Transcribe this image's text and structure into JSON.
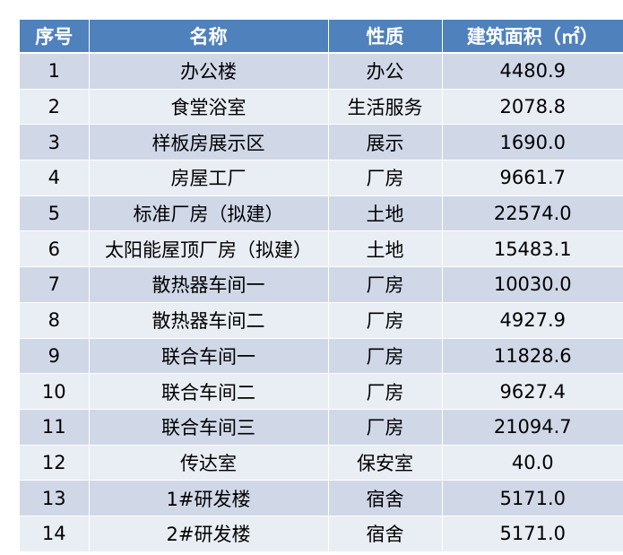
{
  "table": {
    "headers": [
      "序号",
      "名称",
      "性质",
      "建筑面积（㎡）"
    ],
    "rows": [
      [
        "1",
        "办公楼",
        "办公",
        "4480.9"
      ],
      [
        "2",
        "食堂浴室",
        "生活服务",
        "2078.8"
      ],
      [
        "3",
        "样板房展示区",
        "展示",
        "1690.0"
      ],
      [
        "4",
        "房屋工厂",
        "厂房",
        "9661.7"
      ],
      [
        "5",
        "标准厂房（拟建）",
        "土地",
        "22574.0"
      ],
      [
        "6",
        "太阳能屋顶厂房（拟建）",
        "土地",
        "15483.1"
      ],
      [
        "7",
        "散热器车间一",
        "厂房",
        "10030.0"
      ],
      [
        "8",
        "散热器车间二",
        "厂房",
        "4927.9"
      ],
      [
        "9",
        "联合车间一",
        "厂房",
        "11828.6"
      ],
      [
        "10",
        "联合车间二",
        "厂房",
        "9627.4"
      ],
      [
        "11",
        "联合车间三",
        "厂房",
        "21094.7"
      ],
      [
        "12",
        "传达室",
        "保安室",
        "40.0"
      ],
      [
        "13",
        "1#研发楼",
        "宿舍",
        "5171.0"
      ],
      [
        "14",
        "2#研发楼",
        "宿舍",
        "5171.0"
      ]
    ]
  },
  "colors": {
    "header_bg": "#4f81bd",
    "row_odd_bg": "#d0d8e8",
    "row_even_bg": "#e9edf4"
  }
}
